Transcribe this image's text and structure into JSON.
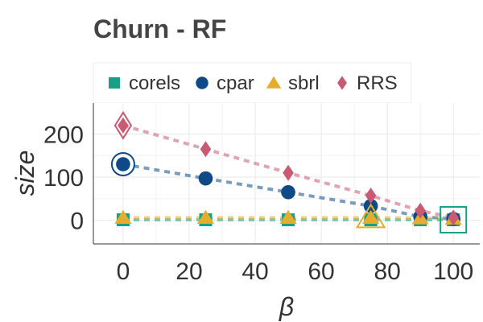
{
  "chart_data": {
    "type": "line",
    "title": "Churn - RF",
    "xlabel": "β",
    "ylabel": "size",
    "xlim": [
      -9,
      108
    ],
    "ylim": [
      -55,
      272
    ],
    "xticks": [
      0,
      20,
      40,
      60,
      80,
      100
    ],
    "yticks": [
      0,
      100,
      200
    ],
    "grid": true,
    "legend_position": "top",
    "series": [
      {
        "name": "corels",
        "color": "#16a085",
        "marker": "square",
        "x": [
          0,
          25,
          50,
          75,
          90,
          100
        ],
        "values": [
          1,
          1,
          1,
          1,
          1,
          1
        ],
        "highlight_index": 5
      },
      {
        "name": "cpar",
        "color": "#0e4a87",
        "marker": "circle",
        "x": [
          0,
          25,
          50,
          75,
          90,
          100
        ],
        "values": [
          130,
          97,
          65,
          33,
          8,
          3
        ],
        "highlight_index": 0
      },
      {
        "name": "sbrl",
        "color": "#e5ad2b",
        "marker": "triangle",
        "x": [
          0,
          25,
          50,
          75,
          90,
          100
        ],
        "values": [
          6,
          6,
          6,
          6,
          5,
          4
        ],
        "highlight_index": 3
      },
      {
        "name": "RRS",
        "color": "#c95a72",
        "marker": "diamond",
        "x": [
          0,
          25,
          50,
          75,
          90,
          100
        ],
        "values": [
          220,
          165,
          110,
          57,
          22,
          6
        ],
        "highlight_index": 0
      }
    ]
  }
}
